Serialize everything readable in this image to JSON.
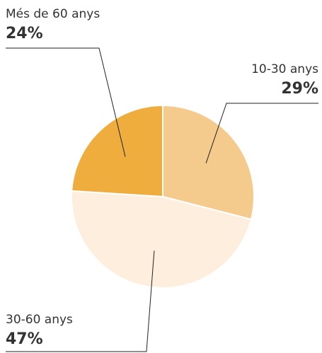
{
  "chart_data": {
    "type": "pie",
    "categories": [
      "10-30 anys",
      "30-60 anys",
      "Més de 60 anys"
    ],
    "values": [
      29,
      47,
      24
    ],
    "value_labels": [
      "29%",
      "47%",
      "24%"
    ],
    "colors": [
      "#f5cb8d",
      "#fdeedd",
      "#eead3c"
    ]
  }
}
